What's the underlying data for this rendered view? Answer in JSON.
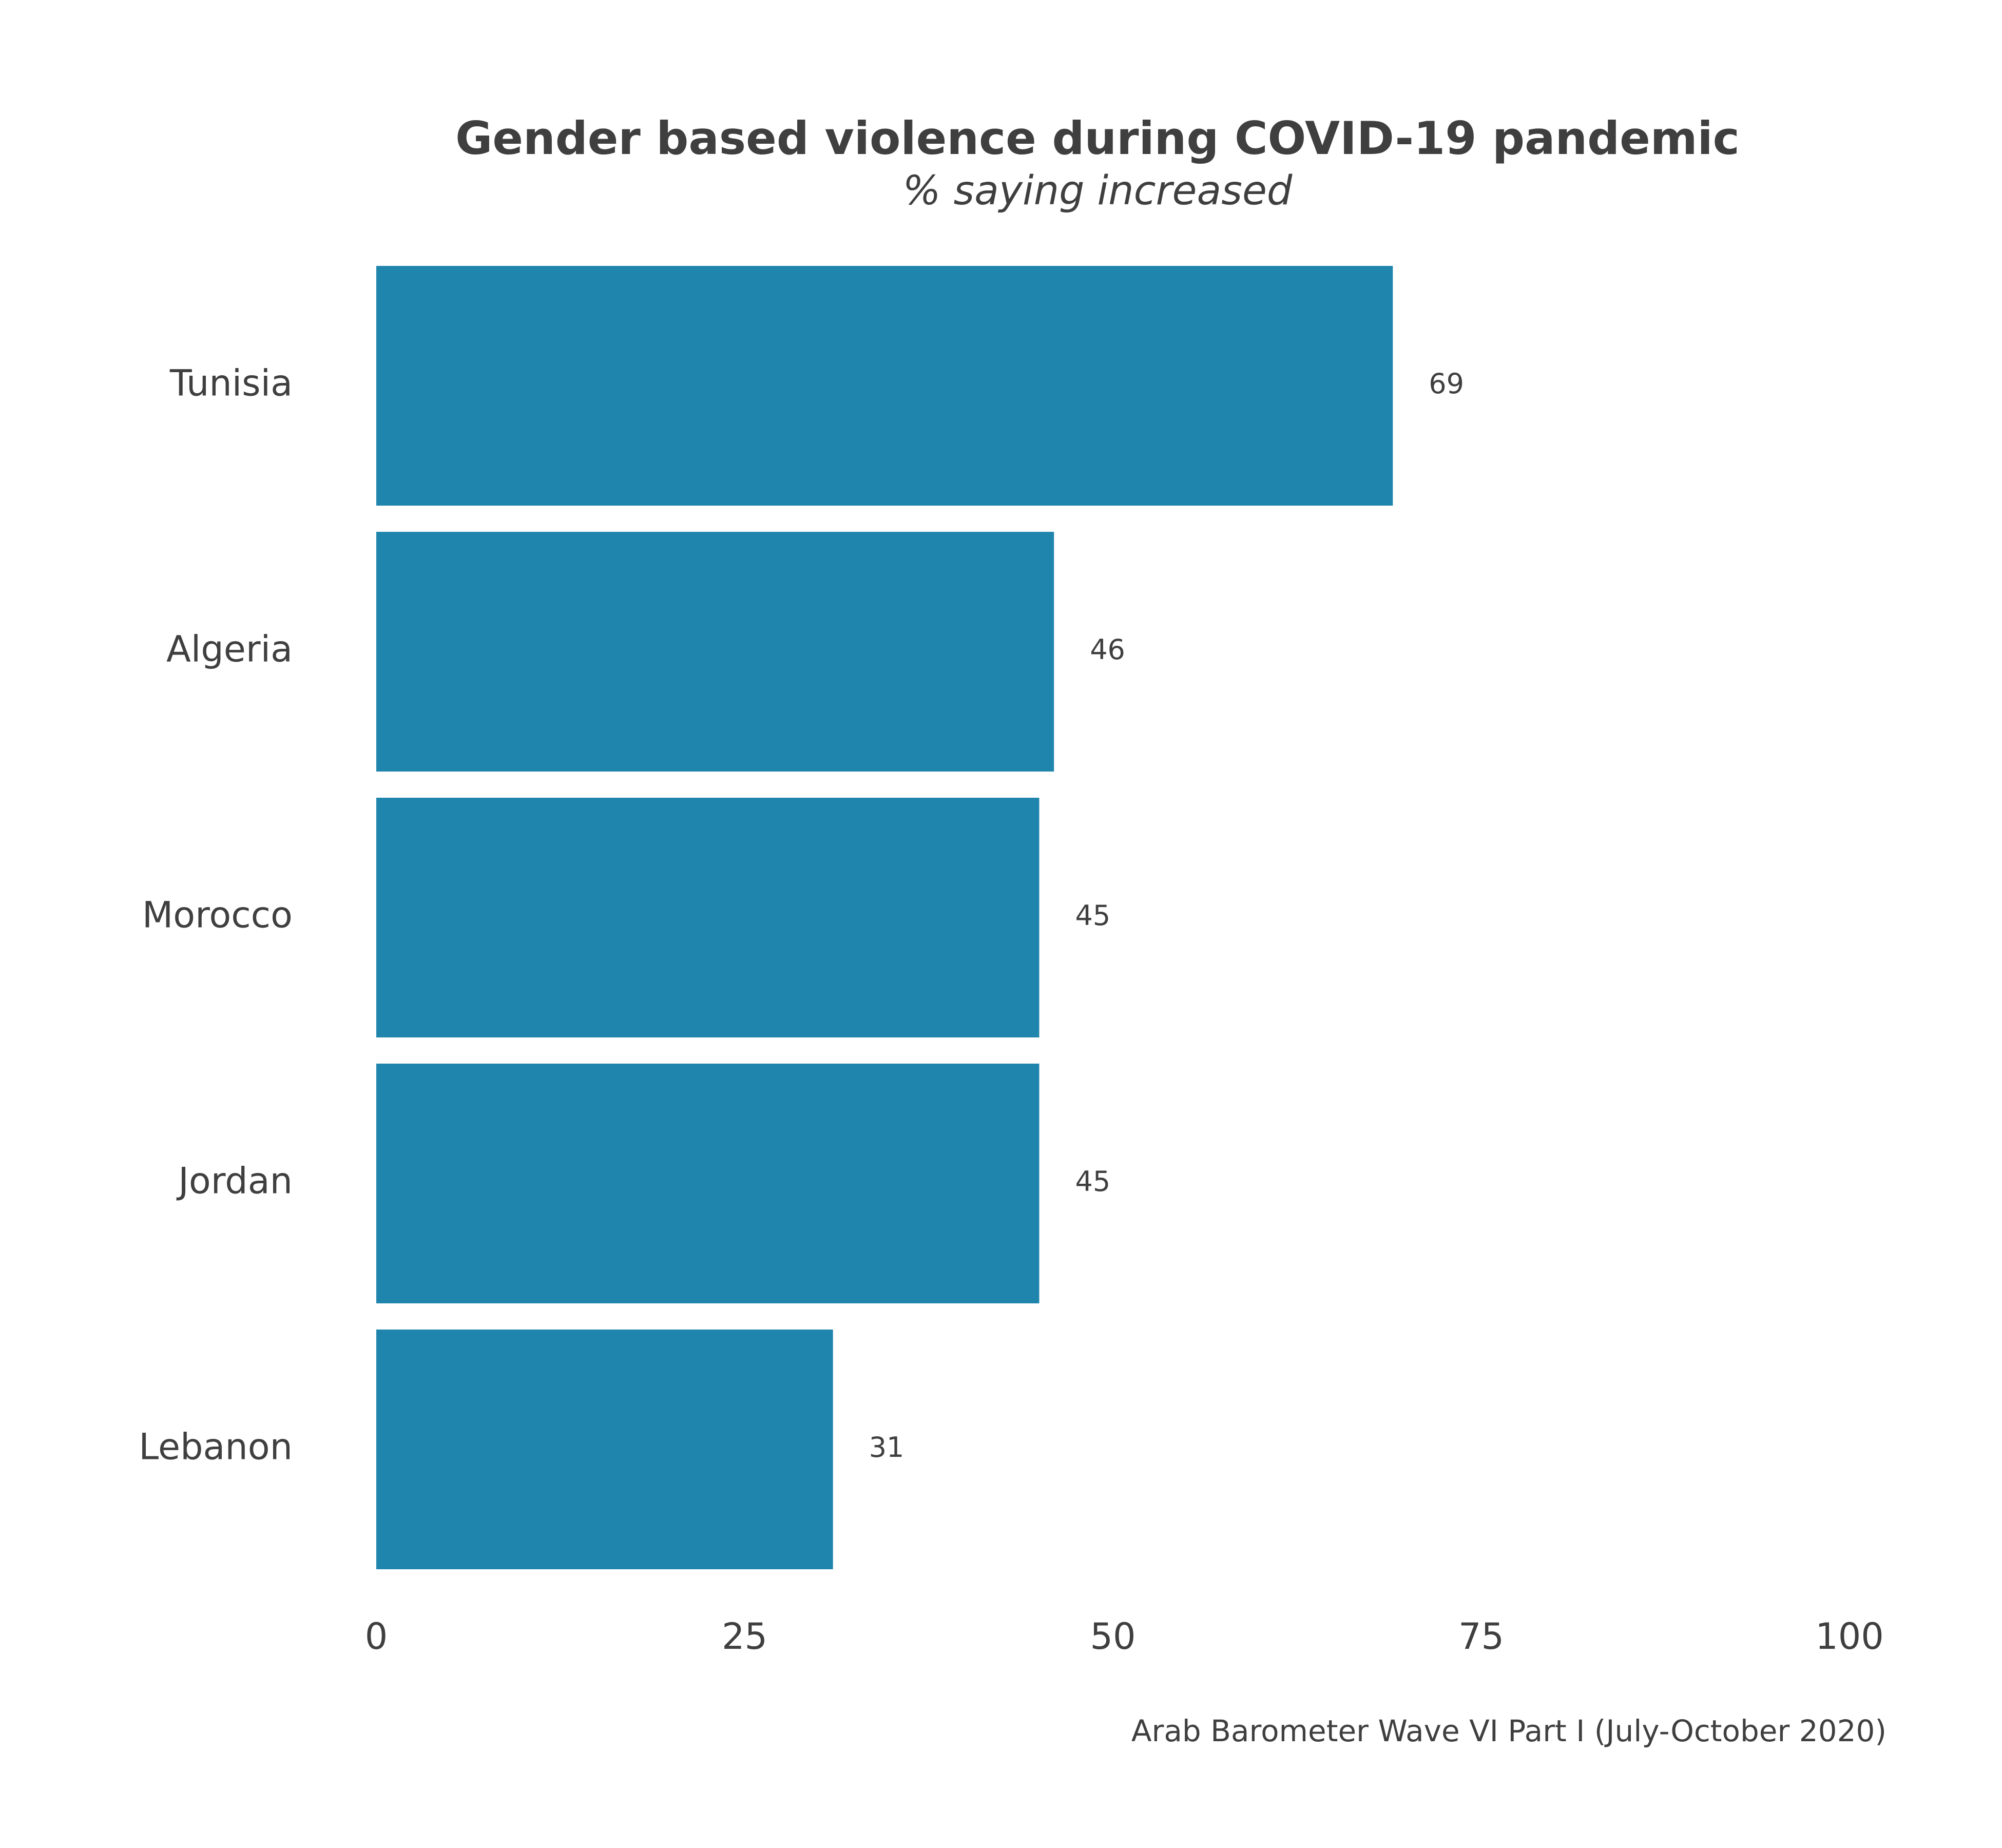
{
  "chart_data": {
    "type": "bar",
    "orientation": "horizontal",
    "title": "Gender based violence during COVID-19 pandemic",
    "subtitle": "% saying increased",
    "caption": "Arab Barometer Wave VI Part I (July-October 2020)",
    "categories": [
      "Tunisia",
      "Algeria",
      "Morocco",
      "Jordan",
      "Lebanon"
    ],
    "values": [
      69,
      46,
      45,
      45,
      31
    ],
    "value_labels": [
      "69",
      "46",
      "45",
      "45",
      "31"
    ],
    "xlim": [
      0,
      100
    ],
    "x_ticks": [
      0,
      25,
      50,
      75,
      100
    ],
    "x_tick_labels": [
      "0",
      "25",
      "50",
      "75",
      "100"
    ],
    "grid": false,
    "legend": "none",
    "bar_color": "#1f85ad",
    "text_color": "#3f3f3f"
  }
}
